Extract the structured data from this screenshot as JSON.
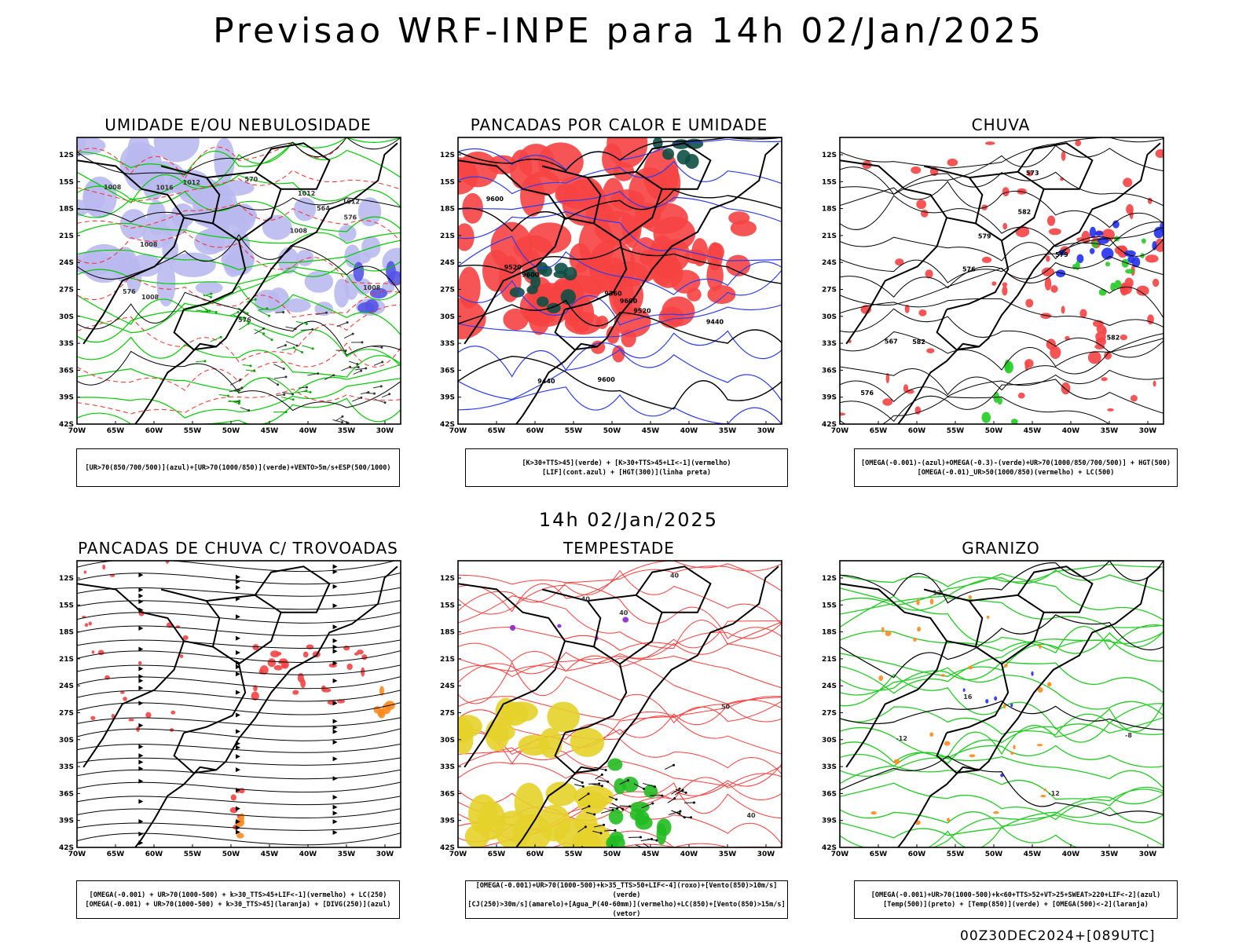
{
  "title": "Previsao WRF-INPE  para 14h 02/Jan/2025",
  "middle_label": "14h 02/Jan/2025",
  "footer": "00Z30DEC2024+[089UTC]",
  "axes": {
    "lat_ticks": [
      "12S",
      "15S",
      "18S",
      "21S",
      "24S",
      "27S",
      "30S",
      "33S",
      "36S",
      "39S",
      "42S"
    ],
    "lon_ticks": [
      "70W",
      "65W",
      "60W",
      "55W",
      "50W",
      "45W",
      "40W",
      "35W",
      "30W"
    ]
  },
  "panels": [
    {
      "title": "UMIDADE E/OU NEBULOSIDADE",
      "legend": [
        "[UR>70(850/700/500)](azul)+[UR>70(1000/850)](verde)+VENTO>5m/s+ESP(500/1000)"
      ],
      "contour_labels": [
        "1012",
        "1008",
        "1008",
        "1008",
        "1008",
        "1012",
        "1012",
        "1008",
        "576",
        "576",
        "570",
        "576",
        "564",
        "1016"
      ]
    },
    {
      "title": "PANCADAS POR CALOR E UMIDADE",
      "legend": [
        "[K>30+TTS>45](verde) + [K>30+TTS>45+LI<-1](vermelho)",
        "[LIF](cont.azul) + [HGT(300)](linha preta)"
      ],
      "contour_labels": [
        "9600",
        "9600",
        "9600",
        "9600",
        "9520",
        "9520",
        "9440",
        "9360",
        "9440"
      ]
    },
    {
      "title": "CHUVA",
      "legend": [
        "[OMEGA(-0.001)-(azul)+OMEGA(-0.3)-(verde)+UR>70(1000/850/700/500)] + HGT(500)",
        "[OMEGA(-0.01)_UR>50(1000/850)(vermelho) + LC(500)"
      ],
      "contour_labels": [
        "582",
        "582",
        "579",
        "579",
        "576",
        "573",
        "567",
        "576",
        "582"
      ]
    },
    {
      "title": "PANCADAS DE CHUVA C/ TROVOADAS",
      "legend": [
        "[OMEGA(-0.001) + UR>70(1000-500) + k>30_TTS>45+LIF<-1](vermelho) + LC(250)",
        "[OMEGA(-0.001) + UR>70(1000-500) + k>30_TTS>45](laranja) + [DIVG(250)](azul)"
      ],
      "contour_labels": []
    },
    {
      "title": "TEMPESTADE",
      "legend": [
        "[OMEGA(-0.001)+UR>70(1000-500)+k>35_TTS>50+LIF<-4](roxo)+[Vento(850)>10m/s](verde)",
        "[CJ(250)>30m/s](amarelo)+[Agua_P(40-60mm)](vermelho)+LC(850)+[Vento(850)>15m/s](vetor)"
      ],
      "contour_labels": [
        "40",
        "40",
        "40",
        "50",
        "40"
      ]
    },
    {
      "title": "GRANIZO",
      "legend": [
        "[OMEGA(-0.001)+UR>70(1000-500)+k<60+TTS>52+VT>25+SWEAT>220+LIF<-2](azul)",
        "[Temp(500)](preto) + [Temp(850)](verde) + [OMEGA(500)<-2](laranja)"
      ],
      "contour_labels": [
        "-12",
        "-12",
        "12",
        "16",
        "-8"
      ]
    }
  ]
}
